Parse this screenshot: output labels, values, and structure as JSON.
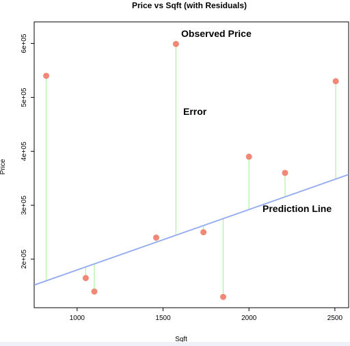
{
  "chart_data": {
    "type": "scatter",
    "title": "Price vs Sqft (with Residuals)",
    "xlabel": "Sqft",
    "ylabel": "Price",
    "xlim": [
      750,
      2580
    ],
    "ylim": [
      110000,
      640000
    ],
    "x_ticks": [
      1000,
      1500,
      2000,
      2500
    ],
    "x_tick_labels": [
      "1000",
      "1500",
      "2000",
      "2500"
    ],
    "y_ticks": [
      200000,
      300000,
      400000,
      500000,
      600000
    ],
    "y_tick_labels": [
      "2e+05",
      "3e+05",
      "4e+05",
      "5e+05",
      "6e+05"
    ],
    "grid": false,
    "points": [
      {
        "x": 820,
        "y": 540000
      },
      {
        "x": 1050,
        "y": 165000
      },
      {
        "x": 1100,
        "y": 140000
      },
      {
        "x": 1460,
        "y": 240000
      },
      {
        "x": 1575,
        "y": 599000
      },
      {
        "x": 1735,
        "y": 250000
      },
      {
        "x": 1850,
        "y": 130000
      },
      {
        "x": 2000,
        "y": 390000
      },
      {
        "x": 2210,
        "y": 360000
      },
      {
        "x": 2505,
        "y": 530000
      }
    ],
    "regression_line": {
      "intercept": 68000,
      "slope": 112
    },
    "annotations": {
      "observed": "Observed Price",
      "error": "Error",
      "prediction": "Prediction Line"
    },
    "colors": {
      "points": "#f08878",
      "line": "#8fa8f0",
      "residuals": "#b8f0a8",
      "axis": "#000000"
    }
  }
}
